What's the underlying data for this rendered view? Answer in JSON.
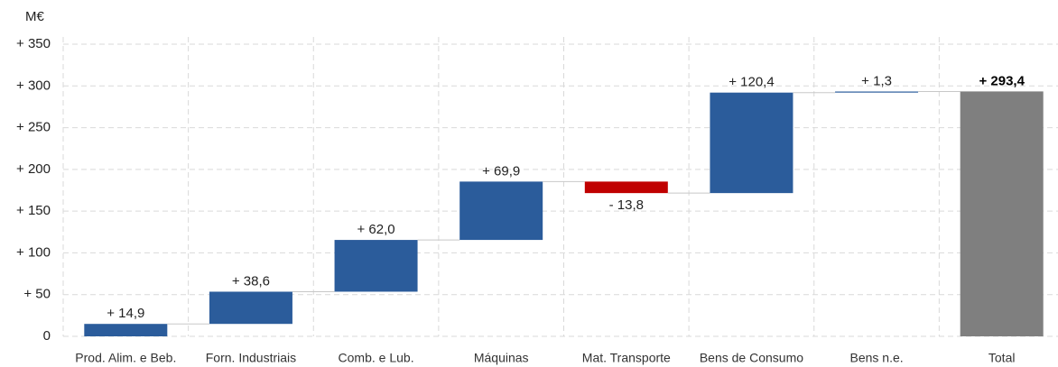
{
  "chart_data": {
    "type": "waterfall",
    "y_label": "M€",
    "categories": [
      "Prod. Alim. e Beb.",
      "Forn. Industriais",
      "Comb. e Lub.",
      "Máquinas",
      "Mat. Transporte",
      "Bens de Consumo",
      "Bens n.e.",
      "Total"
    ],
    "values": [
      14.9,
      38.6,
      62.0,
      69.9,
      -13.8,
      120.4,
      1.3,
      293.4
    ],
    "value_labels": [
      "+ 14,9",
      "+ 38,6",
      "+ 62,0",
      "+ 69,9",
      "- 13,8",
      "+ 120,4",
      "+ 1,3",
      "+ 293,4"
    ],
    "color": "#2b5c9b",
    "negative_color": "#c00000",
    "total_color": "#7f7f7f",
    "ylim": [
      0,
      350
    ],
    "yticks": [
      0,
      {
        "value": 50,
        "label": "+ 50"
      },
      {
        "value": 100,
        "label": "+ 100"
      },
      {
        "value": 150,
        "label": "+ 150"
      },
      {
        "value": 200,
        "label": "+ 200"
      },
      {
        "value": 250,
        "label": "+ 250"
      },
      {
        "value": 300,
        "label": "+ 300"
      },
      {
        "value": 350,
        "label": "+ 350"
      }
    ],
    "grid": true
  }
}
